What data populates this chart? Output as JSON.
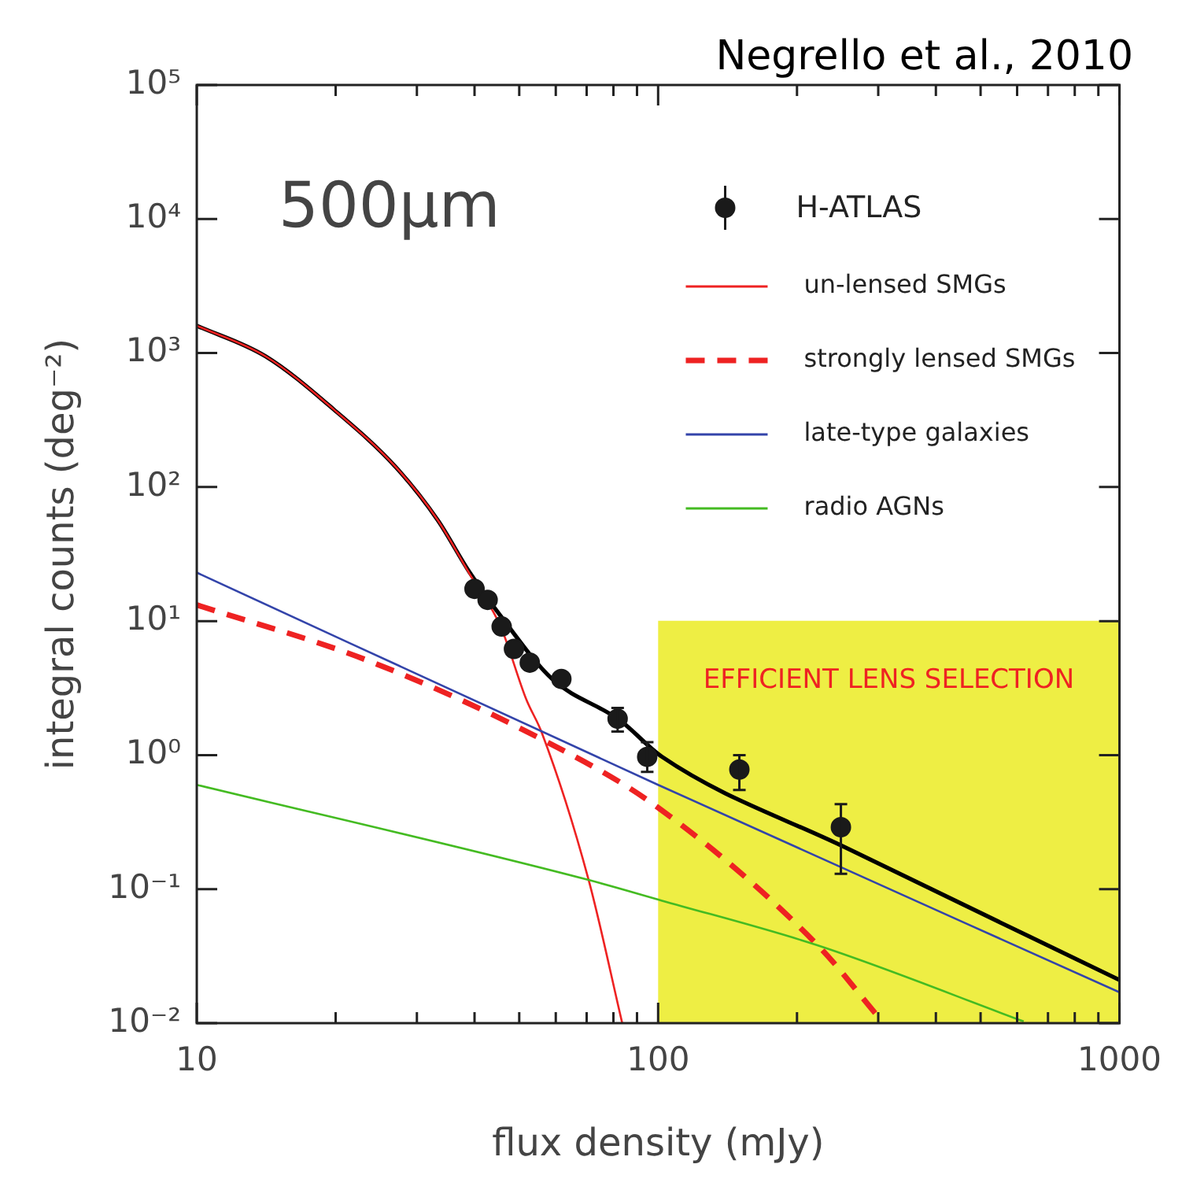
{
  "chart_data": {
    "type": "line",
    "xlabel": "flux density (mJy)",
    "ylabel": "integral counts (deg⁻²)",
    "log": "xy",
    "grid": false,
    "legend": "top right",
    "xlim": [
      10,
      1000
    ],
    "ylim": [
      0.01,
      100000
    ],
    "xticks": [
      10,
      {
        "value": 20,
        "label": null
      },
      {
        "value": 30,
        "label": null
      },
      {
        "value": 40,
        "label": null
      },
      {
        "value": 50,
        "label": null
      },
      {
        "value": 60,
        "label": null
      },
      {
        "value": 70,
        "label": null
      },
      {
        "value": 80,
        "label": null
      },
      {
        "value": 90,
        "label": null
      },
      100,
      {
        "value": 200,
        "label": null
      },
      {
        "value": 300,
        "label": null
      },
      {
        "value": 400,
        "label": null
      },
      {
        "value": 500,
        "label": null
      },
      {
        "value": 600,
        "label": null
      },
      {
        "value": 700,
        "label": null
      },
      {
        "value": 800,
        "label": null
      },
      {
        "value": 900,
        "label": null
      },
      1000
    ],
    "yticks": [
      {
        "value": 0.01,
        "label": "10⁻²"
      },
      {
        "value": 0.1,
        "label": "10⁻¹"
      },
      {
        "value": 1,
        "label": "10⁰"
      },
      {
        "value": 10,
        "label": "10¹"
      },
      {
        "value": 100,
        "label": "10²"
      },
      {
        "value": 1000,
        "label": "10³"
      },
      {
        "value": 10000,
        "label": "10⁴"
      },
      {
        "value": 100000,
        "label": "10⁵"
      }
    ],
    "annotations": [
      "Negrello et al., 2010",
      "500μm"
    ],
    "bands": [
      {
        "axis": "x",
        "from": 100,
        "to": 1000,
        "label": "EFFICIENT LENS SELECTION",
        "color": "#eeee44"
      }
    ],
    "series": [
      {
        "name": "H-ATLAS",
        "type": "scatter",
        "marker": "circle",
        "color": "#1a1a1a",
        "x": [
          40,
          42.7,
          45.8,
          48.7,
          52.7,
          61.7,
          81.7,
          94.7,
          150,
          249
        ],
        "values": [
          17.4,
          14.4,
          9.1,
          6.2,
          4.9,
          3.7,
          1.87,
          0.97,
          0.78,
          0.29
        ],
        "errors": [
          null,
          null,
          null,
          null,
          null,
          null,
          [
            1.5,
            2.25
          ],
          [
            0.75,
            1.25
          ],
          [
            0.55,
            1.0
          ],
          [
            0.13,
            0.43
          ]
        ]
      },
      {
        "color": "#000000",
        "x": [
          10,
          14.1,
          19.8,
          27,
          33.3,
          38.9,
          45.5,
          58.9,
          82.6,
          102,
          258,
          1000
        ],
        "values": [
          1600,
          945,
          380,
          141,
          56.6,
          23.5,
          11,
          3.7,
          1.82,
          0.97,
          0.2,
          0.021
        ]
      },
      {
        "name": "un-lensed SMGs",
        "color": "#ee2222",
        "line_style": "solid",
        "x": [
          10,
          14.1,
          19.8,
          27,
          33.3,
          38.9,
          45.5,
          51.8,
          56,
          70.7,
          83.6
        ],
        "values": [
          1600,
          945,
          380,
          141,
          56.6,
          22.9,
          9.2,
          2.6,
          1.46,
          0.117,
          0.01
        ]
      },
      {
        "name": "strongly lensed SMGs",
        "color": "#ee2222",
        "line_style": "dashed",
        "x": [
          10,
          23.4,
          56,
          98.6,
          222,
          296
        ],
        "values": [
          13.2,
          5.1,
          1.31,
          0.42,
          0.038,
          0.0118
        ]
      },
      {
        "name": "late-type galaxies",
        "color": "#3344aa",
        "line_style": "solid",
        "x": [
          10,
          100,
          1000
        ],
        "values": [
          23,
          0.6,
          0.017
        ]
      },
      {
        "name": "radio AGNs",
        "color": "#44bb22",
        "line_style": "solid",
        "x": [
          10,
          70.7,
          102,
          222,
          620
        ],
        "values": [
          0.6,
          0.117,
          0.082,
          0.038,
          0.0103
        ]
      }
    ]
  }
}
